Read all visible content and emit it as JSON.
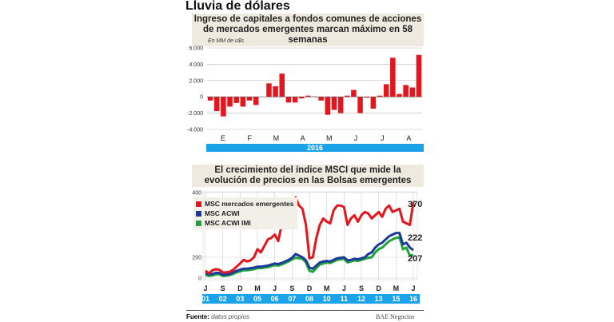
{
  "title": "Lluvia de dólares",
  "chart_data": [
    {
      "type": "bar",
      "title": "Ingreso de capitales a fondos comunes de acciones de mercados emergentes marcan máximo en 58 semanas",
      "ylabel": "En MM de u$s",
      "ylim": [
        -4000,
        6000
      ],
      "yticks": [
        "6.000",
        "4.000",
        "2.000",
        "0",
        "-2.000",
        "-4.000"
      ],
      "categories_label": [
        "E",
        "F",
        "M",
        "A",
        "M",
        "J",
        "J",
        "A"
      ],
      "year_label": "2016",
      "color": "#e3161d",
      "grid": true,
      "values": [
        -450,
        -1750,
        -2400,
        -1200,
        -750,
        -1200,
        -450,
        -1000,
        0,
        1650,
        1300,
        2850,
        -700,
        -700,
        -200,
        150,
        50,
        -450,
        -2200,
        -1600,
        -2000,
        150,
        850,
        -2000,
        -100,
        -1450,
        150,
        1550,
        4800,
        350,
        1450,
        1150,
        5150
      ]
    },
    {
      "type": "line",
      "title": "El crecimiento del índice MSCI que mide la evolución de precios en las Bolsas emergentes",
      "ylim": [
        0,
        400
      ],
      "yticks": [
        "400",
        "200",
        "0"
      ],
      "month_labels": [
        "J",
        "S",
        "D",
        "M",
        "J",
        "S",
        "D",
        "M",
        "J",
        "S",
        "D",
        "M",
        "J"
      ],
      "year_labels": [
        "01",
        "02",
        "03",
        "05",
        "06",
        "07",
        "08",
        "10",
        "11",
        "12",
        "13",
        "15",
        "16"
      ],
      "x_start": "2001-06",
      "x_end": "2016-06",
      "x_step": "quarter",
      "grid": true,
      "legend": "top-left",
      "series": [
        {
          "name": "MSC mercados emergentes",
          "color": "#e3161d",
          "end_label": "370",
          "values": [
            70,
            45,
            75,
            85,
            80,
            55,
            55,
            60,
            80,
            110,
            140,
            175,
            160,
            170,
            200,
            225,
            215,
            235,
            255,
            260,
            270,
            250,
            300,
            290,
            320,
            340,
            385,
            360,
            350,
            300,
            190,
            200,
            260,
            300,
            320,
            310,
            305,
            345,
            360,
            360,
            355,
            300,
            320,
            330,
            310,
            330,
            340,
            335,
            320,
            330,
            340,
            325,
            350,
            360,
            340,
            345,
            350,
            310,
            305,
            300,
            370
          ]
        },
        {
          "name": "MSC ACWI",
          "color": "#1c3a9c",
          "end_label": "222",
          "values": [
            45,
            35,
            40,
            50,
            50,
            30,
            35,
            40,
            55,
            70,
            80,
            90,
            90,
            95,
            100,
            110,
            110,
            115,
            120,
            130,
            140,
            135,
            145,
            160,
            175,
            195,
            210,
            205,
            200,
            170,
            100,
            90,
            120,
            150,
            160,
            165,
            160,
            175,
            190,
            195,
            200,
            170,
            175,
            185,
            180,
            190,
            200,
            210,
            215,
            230,
            240,
            245,
            255,
            265,
            270,
            275,
            275,
            240,
            245,
            230,
            222
          ]
        },
        {
          "name": "MSC ACWI IMI",
          "color": "#1fa33a",
          "end_label": "207",
          "values": [
            30,
            20,
            25,
            35,
            35,
            20,
            22,
            28,
            40,
            55,
            65,
            75,
            75,
            80,
            85,
            95,
            95,
            100,
            105,
            115,
            125,
            120,
            130,
            145,
            160,
            180,
            195,
            190,
            185,
            150,
            70,
            60,
            95,
            130,
            140,
            150,
            145,
            160,
            175,
            180,
            185,
            150,
            160,
            170,
            165,
            175,
            185,
            195,
            200,
            215,
            225,
            230,
            240,
            250,
            255,
            260,
            262,
            225,
            230,
            205,
            207
          ]
        }
      ]
    }
  ],
  "footer": {
    "source_label": "Fuente:",
    "source_value": "datos propios",
    "credit": "BAE Negocios"
  }
}
